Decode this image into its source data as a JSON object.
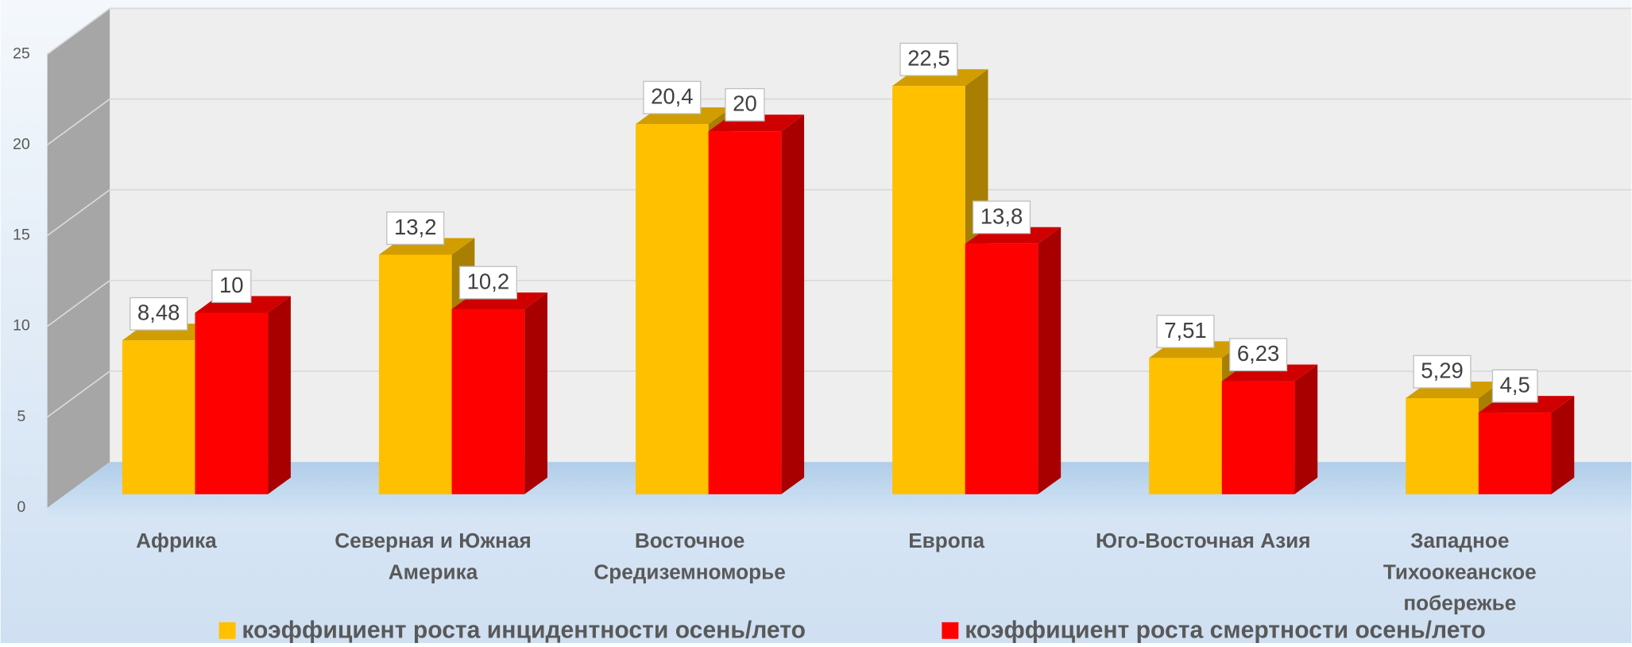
{
  "chart_data": {
    "type": "bar3d",
    "categories": [
      "Африка",
      "Северная и Южная Америка",
      "Восточное Средиземноморье",
      "Европа",
      "Юго-Восточная Азия",
      "Западное Тихоокеанское побережье"
    ],
    "series": [
      {
        "name": "коэффициент роста инцидентности осень/лето",
        "color": "#FFC000",
        "values": [
          8.48,
          13.2,
          20.4,
          22.5,
          7.51,
          5.29
        ],
        "value_labels": [
          "8,48",
          "13,2",
          "20,4",
          "22,5",
          "7,51",
          "5,29"
        ]
      },
      {
        "name": "коэффициент роста смертности осень/лето",
        "color": "#FF0000",
        "values": [
          10,
          10.2,
          20,
          13.8,
          6.23,
          4.5
        ],
        "value_labels": [
          "10",
          "10,2",
          "20",
          "13,8",
          "6,23",
          "4,5"
        ]
      }
    ],
    "ylim": [
      0,
      25
    ],
    "yticks": [
      0,
      5,
      10,
      15,
      20,
      25
    ],
    "grid": true,
    "legend": "bottom"
  }
}
